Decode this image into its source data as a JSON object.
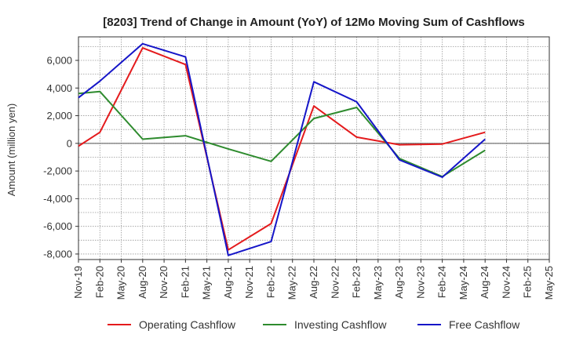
{
  "chart_data": {
    "type": "line",
    "title": "[8203]  Trend of Change in Amount (YoY) of 12Mo Moving Sum of Cashflows",
    "xlabel": "",
    "ylabel": "Amount (million yen)",
    "ylim": [
      -8400,
      7700
    ],
    "yticks": [
      -8000,
      -6000,
      -4000,
      -2000,
      0,
      2000,
      4000,
      6000
    ],
    "ytick_labels": [
      "-8,000",
      "-6,000",
      "-4,000",
      "-2,000",
      "0",
      "2,000",
      "4,000",
      "6,000"
    ],
    "categories": [
      "Nov-19",
      "Feb-20",
      "May-20",
      "Aug-20",
      "Nov-20",
      "Feb-21",
      "May-21",
      "Aug-21",
      "Nov-21",
      "Feb-22",
      "May-22",
      "Aug-22",
      "Nov-22",
      "Feb-23",
      "May-23",
      "Aug-23",
      "Nov-23",
      "Feb-24",
      "May-24",
      "Aug-24",
      "Nov-24",
      "Feb-25",
      "May-25"
    ],
    "series": [
      {
        "name": "Operating Cashflow",
        "color": "#e41a1c",
        "values": [
          -200,
          800,
          null,
          6900,
          null,
          5700,
          null,
          -7700,
          null,
          -5800,
          null,
          2700,
          null,
          450,
          null,
          -100,
          null,
          -50,
          null,
          800,
          null,
          null,
          null
        ]
      },
      {
        "name": "Investing Cashflow",
        "color": "#2e8b2e",
        "values": [
          3600,
          3750,
          null,
          300,
          null,
          550,
          null,
          -400,
          null,
          -1300,
          null,
          1800,
          null,
          2600,
          null,
          -1100,
          null,
          -2400,
          null,
          -500,
          null,
          null,
          null
        ]
      },
      {
        "name": "Free Cashflow",
        "color": "#1515c8",
        "values": [
          3300,
          4500,
          null,
          7200,
          null,
          6250,
          null,
          -8100,
          null,
          -7100,
          null,
          4450,
          null,
          3000,
          null,
          -1200,
          null,
          -2450,
          null,
          300,
          null,
          null,
          null
        ]
      }
    ],
    "grid": true,
    "legend_position": "bottom"
  }
}
